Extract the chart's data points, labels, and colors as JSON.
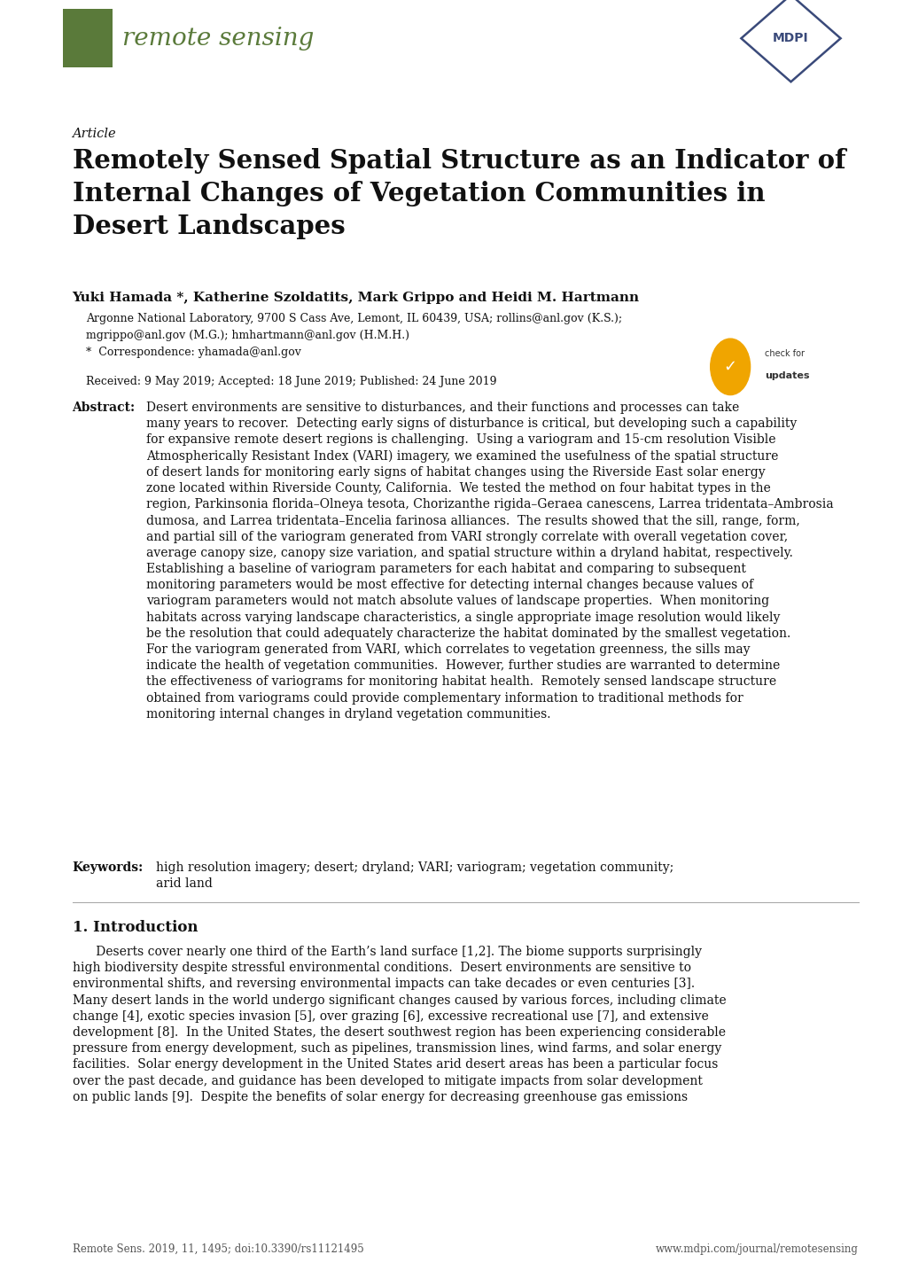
{
  "page_width": 10.2,
  "page_height": 14.42,
  "bg_color": "#ffffff",
  "journal_name": "remote sensing",
  "journal_color": "#5a7a3a",
  "article_label": "Article",
  "title": "Remotely Sensed Spatial Structure as an Indicator of\nInternal Changes of Vegetation Communities in\nDesert Landscapes",
  "authors": "Yuki Hamada *, Katherine Szoldatits, Mark Grippo and Heidi M. Hartmann",
  "affiliation1": "Argonne National Laboratory, 9700 S Cass Ave, Lemont, IL 60439, USA; rollins@anl.gov (K.S.);",
  "affiliation2": "mgrippo@anl.gov (M.G.); hmhartmann@anl.gov (H.M.H.)",
  "correspondence": "*  Correspondence: yhamada@anl.gov",
  "received": "Received: 9 May 2019; Accepted: 18 June 2019; Published: 24 June 2019",
  "footer_left": "Remote Sens. 2019, 11, 1495; doi:10.3390/rs11121495",
  "footer_right": "www.mdpi.com/journal/remotesensing",
  "text_color": "#111111",
  "gray_text": "#333333",
  "mdpi_color": "#3a4a7a",
  "sep_color": "#aaaaaa",
  "badge_color": "#f0a500",
  "footer_color": "#555555",
  "lm": 0.08,
  "rm": 0.95
}
